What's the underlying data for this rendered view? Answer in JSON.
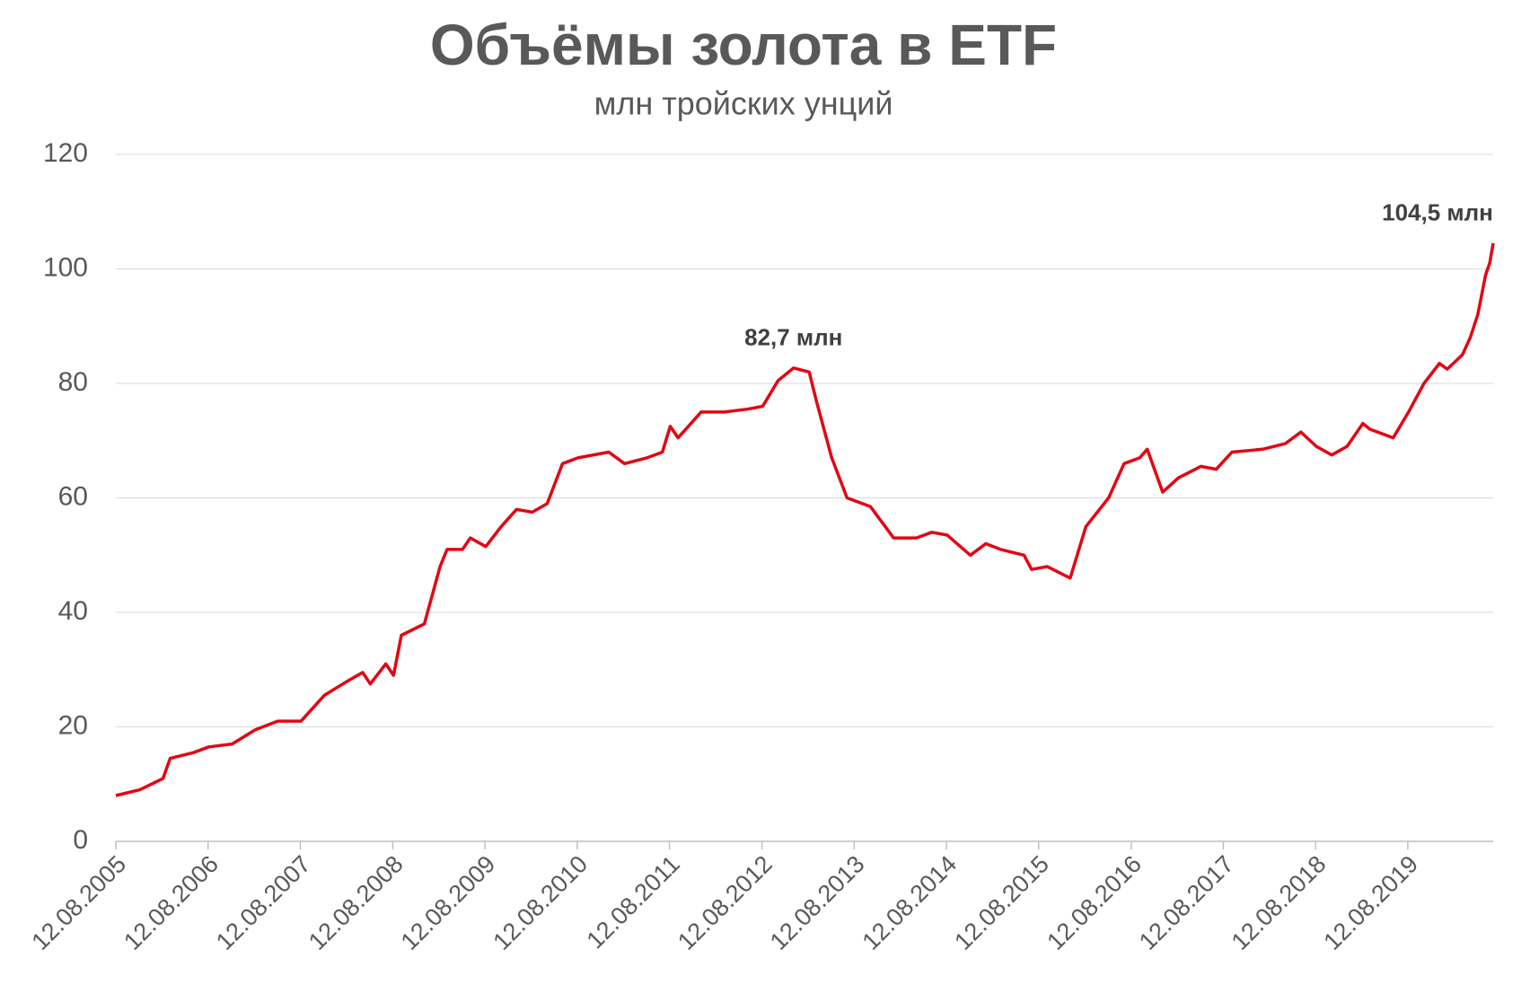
{
  "chart_data": {
    "type": "line",
    "title": "Объёмы золота в ETF",
    "subtitle": "млн тройских унций",
    "x": [
      "2005-08-12",
      "2005-11-15",
      "2006-02-15",
      "2006-03-15",
      "2006-06-15",
      "2006-08-15",
      "2006-11-15",
      "2007-02-15",
      "2007-05-15",
      "2007-08-15",
      "2007-11-15",
      "2008-02-15",
      "2008-04-15",
      "2008-05-15",
      "2008-07-15",
      "2008-08-15",
      "2008-09-15",
      "2008-12-15",
      "2009-02-15",
      "2009-03-15",
      "2009-05-15",
      "2009-06-15",
      "2009-08-15",
      "2009-10-15",
      "2009-12-15",
      "2010-02-15",
      "2010-04-15",
      "2010-06-15",
      "2010-08-15",
      "2010-12-15",
      "2011-02-15",
      "2011-05-15",
      "2011-07-15",
      "2011-08-15",
      "2011-09-15",
      "2011-12-15",
      "2012-03-15",
      "2012-06-15",
      "2012-08-15",
      "2012-10-15",
      "2012-12-15",
      "2013-02-15",
      "2013-03-15",
      "2013-05-15",
      "2013-07-15",
      "2013-10-15",
      "2014-01-15",
      "2014-04-15",
      "2014-06-15",
      "2014-08-15",
      "2014-11-15",
      "2015-01-15",
      "2015-03-15",
      "2015-06-15",
      "2015-07-15",
      "2015-09-15",
      "2015-12-15",
      "2016-02-15",
      "2016-05-15",
      "2016-07-15",
      "2016-09-15",
      "2016-10-15",
      "2016-12-15",
      "2017-02-15",
      "2017-05-15",
      "2017-07-15",
      "2017-09-15",
      "2018-01-15",
      "2018-04-15",
      "2018-06-15",
      "2018-08-15",
      "2018-10-15",
      "2018-12-15",
      "2019-02-15",
      "2019-03-15",
      "2019-06-15",
      "2019-08-15",
      "2019-10-15",
      "2019-12-15",
      "2020-01-15",
      "2020-03-15",
      "2020-04-15",
      "2020-05-15",
      "2020-06-15",
      "2020-07-01",
      "2020-07-15"
    ],
    "series": [
      {
        "color": "#e30613",
        "values": [
          8,
          9,
          11,
          14.5,
          15.5,
          16.5,
          17,
          19.5,
          21,
          21,
          25.5,
          28,
          29.5,
          27.5,
          31,
          29,
          36,
          38,
          48,
          51,
          51,
          53,
          51.5,
          55,
          58,
          57.5,
          59,
          66,
          67,
          68,
          66,
          67,
          68,
          72.5,
          70.5,
          75,
          75,
          75.5,
          76,
          80.5,
          82.7,
          82,
          77,
          67,
          60,
          58.5,
          53,
          53,
          54,
          53.5,
          50,
          52,
          51,
          50,
          47.5,
          48,
          46,
          55,
          60,
          66,
          67,
          68.5,
          61,
          63.5,
          65.5,
          65,
          68,
          68.5,
          69.5,
          71.5,
          69,
          67.5,
          69,
          73,
          72,
          70.5,
          75,
          80,
          83.5,
          82.5,
          85,
          88,
          92,
          99,
          101,
          104.5
        ]
      }
    ],
    "annotations": [
      {
        "text": "82,7 млн",
        "x": "2012-12-15",
        "y": 82.7
      },
      {
        "text": "104,5 млн",
        "x": "2020-07-15",
        "y": 104.5
      }
    ],
    "xlim": [
      "2005-08-12",
      "2020-07-15"
    ],
    "xticks": [
      {
        "value": "2005-08-12",
        "label": "12.08.2005"
      },
      {
        "value": "2006-08-12",
        "label": "12.08.2006"
      },
      {
        "value": "2007-08-12",
        "label": "12.08.2007"
      },
      {
        "value": "2008-08-12",
        "label": "12.08.2008"
      },
      {
        "value": "2009-08-12",
        "label": "12.08.2009"
      },
      {
        "value": "2010-08-12",
        "label": "12.08.2010"
      },
      {
        "value": "2011-08-12",
        "label": "12.08.2011"
      },
      {
        "value": "2012-08-12",
        "label": "12.08.2012"
      },
      {
        "value": "2013-08-12",
        "label": "12.08.2013"
      },
      {
        "value": "2014-08-12",
        "label": "12.08.2014"
      },
      {
        "value": "2015-08-12",
        "label": "12.08.2015"
      },
      {
        "value": "2016-08-12",
        "label": "12.08.2016"
      },
      {
        "value": "2017-08-12",
        "label": "12.08.2017"
      },
      {
        "value": "2018-08-12",
        "label": "12.08.2018"
      },
      {
        "value": "2019-08-12",
        "label": "12.08.2019"
      }
    ],
    "ylim": [
      0,
      120
    ],
    "yticks": [
      0,
      20,
      40,
      60,
      80,
      100,
      120
    ],
    "grid": true
  }
}
